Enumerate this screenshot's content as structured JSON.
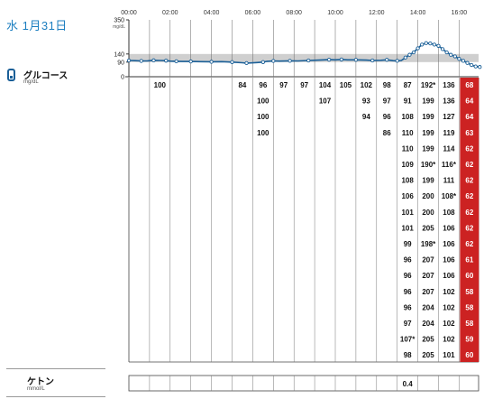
{
  "header": {
    "date": "水 1月31日"
  },
  "glucose": {
    "title": "グルコース",
    "unit": "mg/dL"
  },
  "ketone": {
    "title": "ケトン",
    "unit": "mmol/L"
  },
  "colors": {
    "line": "#1a5f97",
    "target_band": "#cfcfcf",
    "low": "#cc2222",
    "date_text": "#1b7ec0"
  },
  "chart_data": {
    "type": "line",
    "x_tick_labels": [
      "00:00",
      "02:00",
      "04:00",
      "06:00",
      "08:00",
      "10:00",
      "12:00",
      "14:00",
      "16:00"
    ],
    "y_tick_labels": [
      "350",
      "140",
      "90",
      "0"
    ],
    "y_unit_label": "mg/dL",
    "ylim": [
      0,
      350
    ],
    "target_range": [
      90,
      140
    ],
    "xlim_hours": [
      0,
      17.2
    ],
    "series": [
      {
        "x": [
          0,
          0.3,
          0.6,
          0.9,
          1.2,
          1.5,
          1.8,
          2.0,
          2.3,
          2.6,
          3.0,
          3.5,
          4.0,
          4.5,
          5.0,
          5.5,
          5.7,
          6.2,
          6.5,
          6.7,
          7.0,
          7.3,
          7.8,
          8.2,
          8.7,
          9.2,
          9.7,
          10.0,
          10.3,
          10.6,
          11.0,
          11.5,
          11.8,
          12.2,
          12.5,
          12.8,
          13.0,
          13.2,
          13.4,
          13.6,
          13.8,
          14.0,
          14.2,
          14.4,
          14.6,
          14.8,
          15.0,
          15.2,
          15.4,
          15.6,
          15.8,
          16.0,
          16.2,
          16.4,
          16.6,
          16.8,
          17.0
        ],
        "y": [
          100,
          99,
          97,
          98,
          101,
          100,
          99,
          96,
          95,
          94,
          94,
          93,
          92,
          93,
          90,
          86,
          84,
          87,
          90,
          95,
          97,
          96,
          98,
          97,
          100,
          102,
          105,
          104,
          106,
          104,
          104,
          102,
          100,
          101,
          104,
          99,
          98,
          100,
          118,
          135,
          150,
          175,
          198,
          207,
          205,
          198,
          190,
          170,
          150,
          135,
          125,
          110,
          98,
          85,
          72,
          63,
          60
        ]
      }
    ],
    "table": {
      "columns": [
        [],
        [
          "100"
        ],
        [],
        [],
        [],
        [
          "84"
        ],
        [
          "96",
          "100",
          "100",
          "100"
        ],
        [
          "97"
        ],
        [
          "97"
        ],
        [
          "104",
          "107"
        ],
        [
          "105"
        ],
        [
          "102",
          "93",
          "94"
        ],
        [
          "98",
          "97",
          "96",
          "86"
        ],
        [
          "87",
          "91",
          "108",
          "110",
          "110",
          "109",
          "108",
          "106",
          "101",
          "101",
          "99",
          "96",
          "96",
          "96",
          "96",
          "97",
          "107*",
          "98"
        ],
        [
          "192*",
          "199",
          "199",
          "199",
          "199",
          "190*",
          "199",
          "200",
          "200",
          "205",
          "198*",
          "207",
          "207",
          "207",
          "204",
          "204",
          "205",
          "205"
        ],
        [
          "136",
          "136",
          "127",
          "119",
          "114",
          "116*",
          "111",
          "108*",
          "108",
          "106",
          "106",
          "106",
          "106",
          "102",
          "102",
          "102",
          "102",
          "101"
        ],
        [
          "68",
          "64",
          "64",
          "63",
          "62",
          "62",
          "62",
          "62",
          "62",
          "62",
          "62",
          "61",
          "60",
          "58",
          "58",
          "58",
          "59",
          "60"
        ]
      ]
    },
    "ketone_value": "0.4"
  }
}
